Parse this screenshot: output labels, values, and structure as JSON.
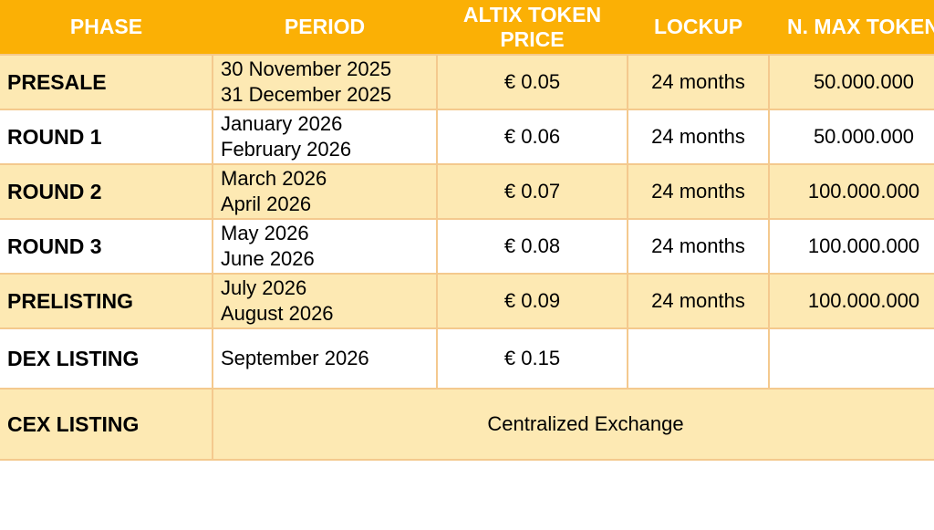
{
  "table": {
    "headers": [
      "PHASE",
      "PERIOD",
      "ALTIX TOKEN PRICE",
      "LOCKUP",
      "N. MAX TOKEN"
    ],
    "rows": [
      {
        "phase": "PRESALE",
        "period": "30 November 2025\n31 December 2025",
        "price": "€ 0.05",
        "lockup": "24 months",
        "max_tokens": "50.000.000"
      },
      {
        "phase": "ROUND 1",
        "period": "January 2026\nFebruary 2026",
        "price": "€ 0.06",
        "lockup": "24 months",
        "max_tokens": "50.000.000"
      },
      {
        "phase": "ROUND 2",
        "period": "March 2026\nApril 2026",
        "price": "€ 0.07",
        "lockup": "24 months",
        "max_tokens": "100.000.000"
      },
      {
        "phase": "ROUND 3",
        "period": "May 2026\nJune 2026",
        "price": "€ 0.08",
        "lockup": "24 months",
        "max_tokens": "100.000.000"
      },
      {
        "phase": "PRELISTING",
        "period": "July 2026\nAugust 2026",
        "price": "€ 0.09",
        "lockup": "24 months",
        "max_tokens": "100.000.000"
      },
      {
        "phase": "DEX LISTING",
        "period": "September 2026",
        "price": "€ 0.15",
        "lockup": "",
        "max_tokens": ""
      },
      {
        "phase": "CEX LISTING",
        "merged": "Centralized Exchange"
      }
    ]
  },
  "colors": {
    "header_bg": "#FBB005",
    "header_text": "#FFFFFF",
    "row_alt_bg": "#FDE9B3",
    "row_bg": "#FFFFFF",
    "border": "#F4C98E",
    "body_text": "#000000"
  }
}
